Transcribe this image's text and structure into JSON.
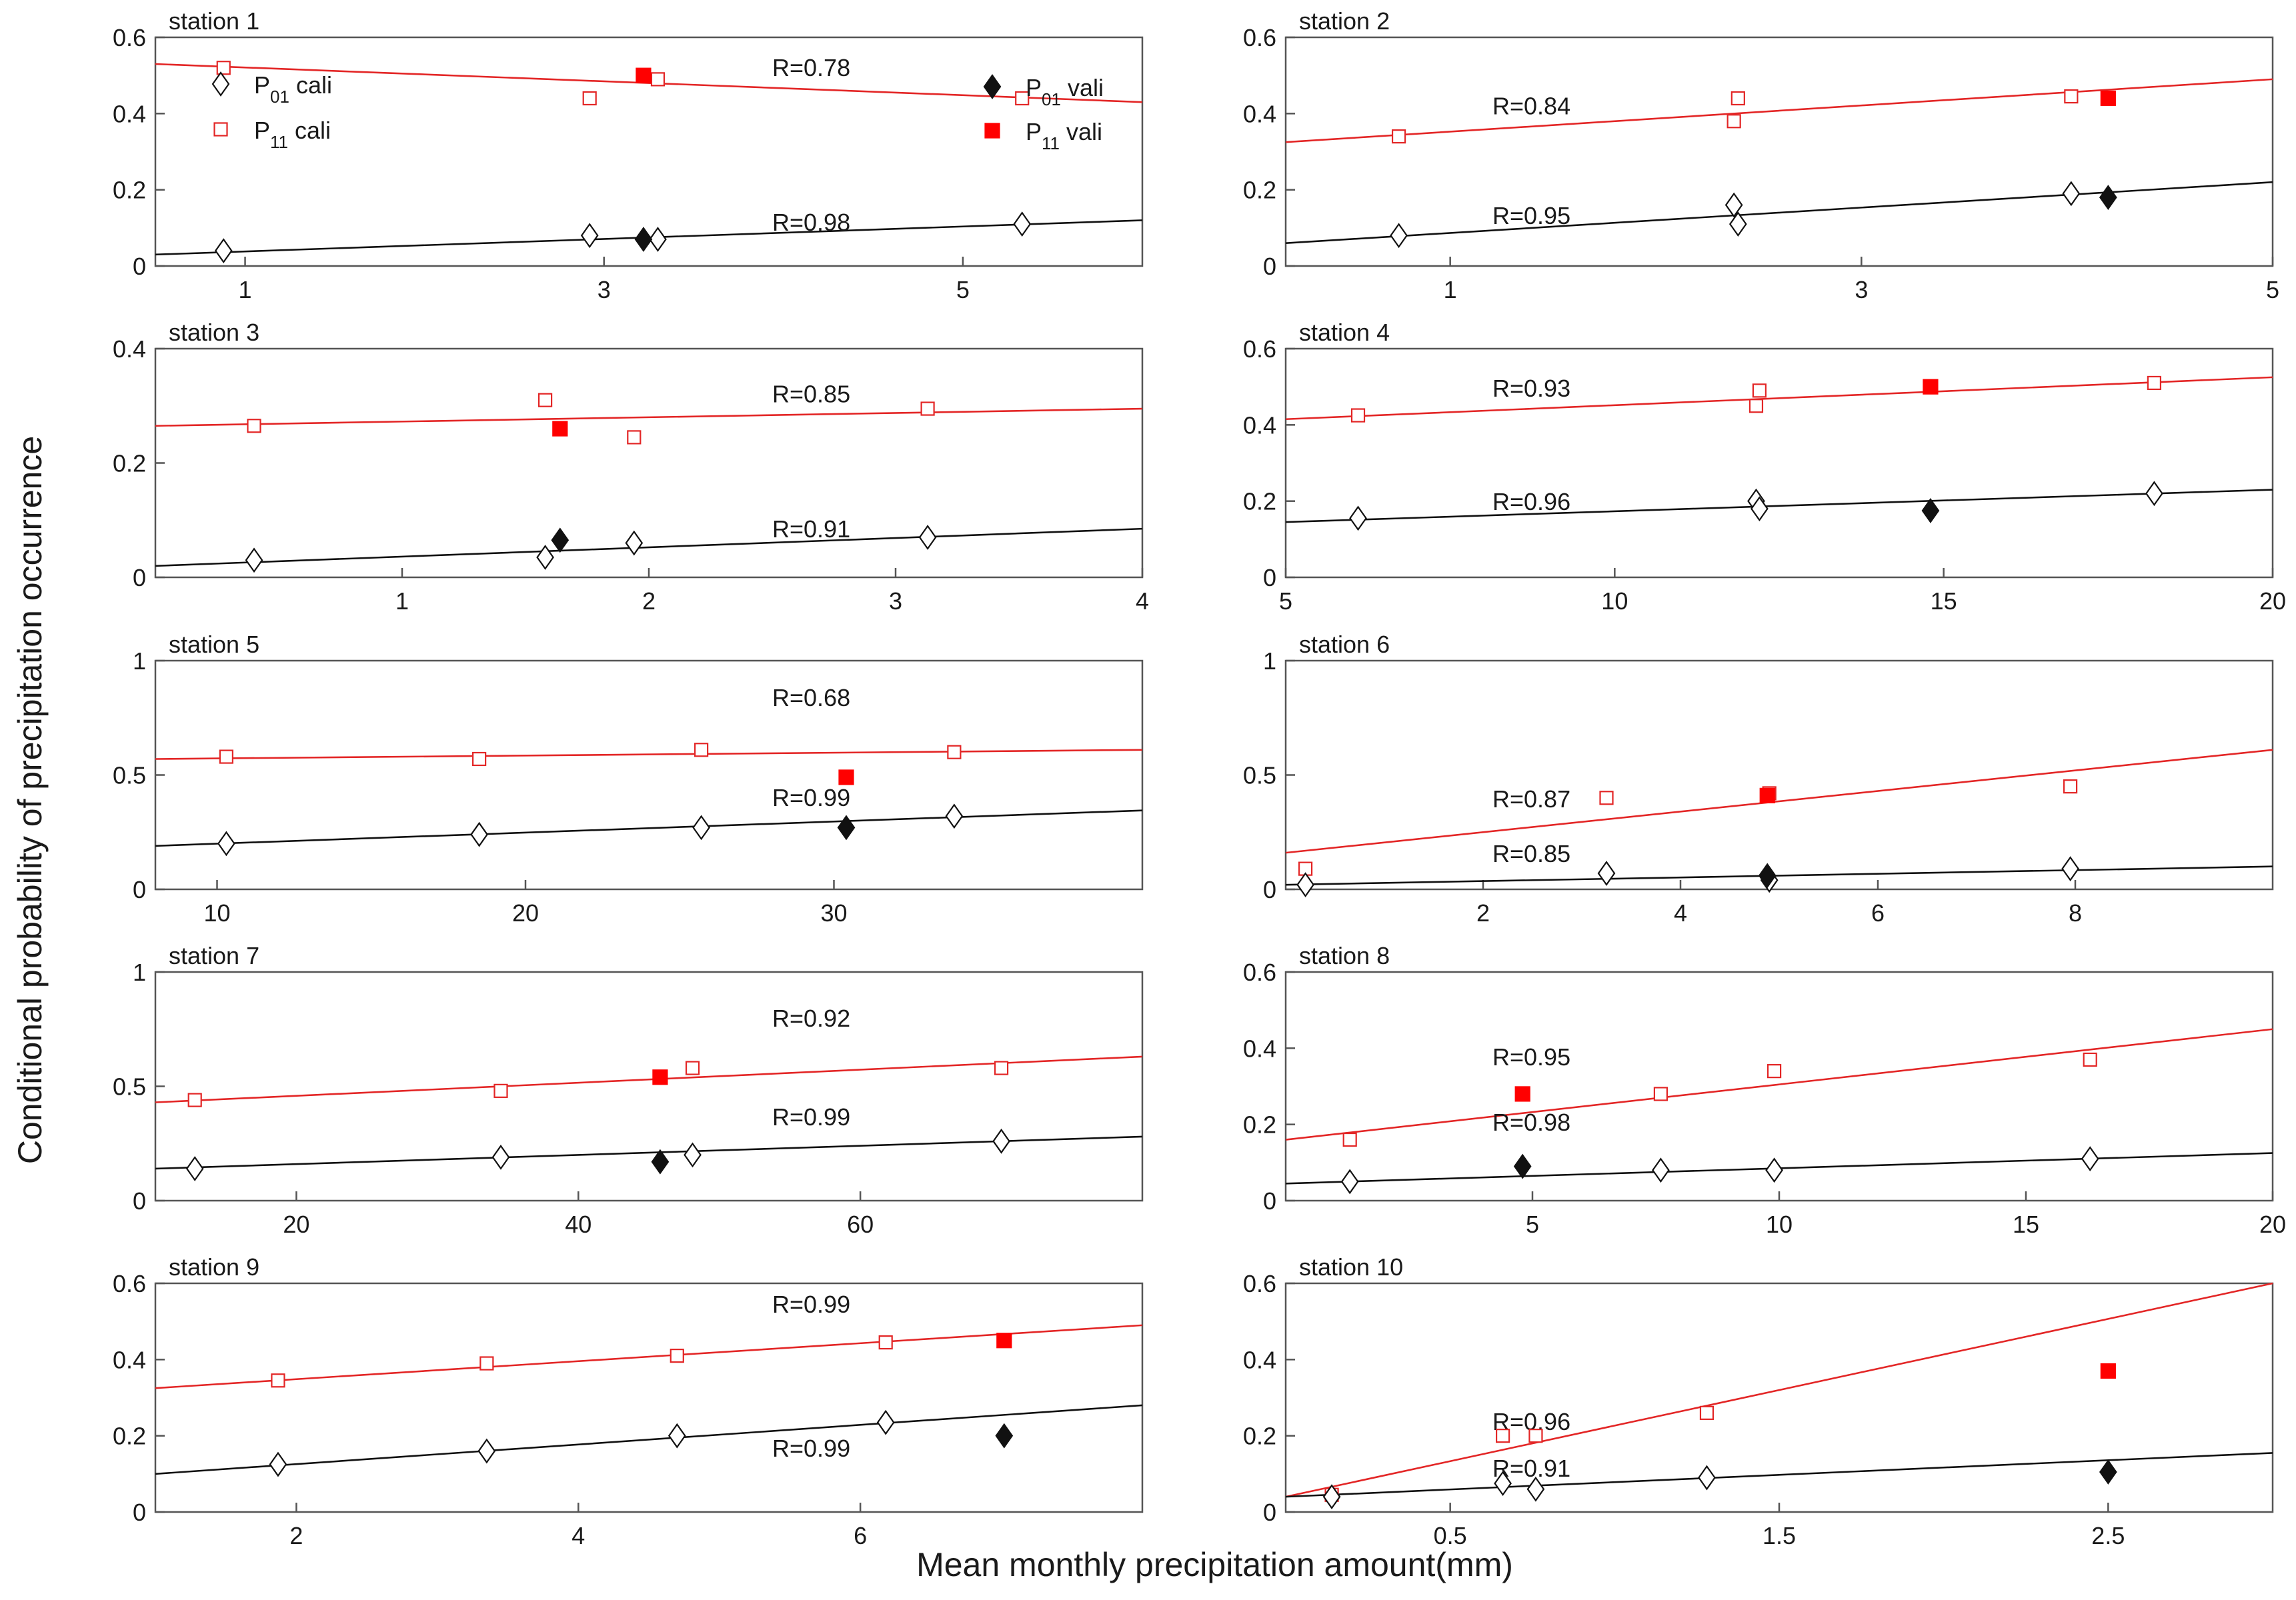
{
  "figure": {
    "ylabel": "Conditional probability of precipitation occurrence",
    "xlabel": "Mean monthly precipitation amount(mm)",
    "legend": {
      "p01_cali": "P01 cali",
      "p11_cali": "P11 cali",
      "p01_vali": "P01 vali",
      "p11_vali": "P11 vali"
    },
    "colors": {
      "p11": "#e32626",
      "p01": "#111111",
      "red_fill": "#ff0000"
    }
  },
  "chart_data": [
    {
      "type": "scatter",
      "title": "station 1",
      "xlim": [
        0.5,
        6
      ],
      "ylim": [
        0,
        0.6
      ],
      "xticks": [
        1,
        3,
        5
      ],
      "yticks": [
        0,
        0.2,
        0.4,
        0.6
      ],
      "r_p11": "R=0.78",
      "r_p01": "R=0.98",
      "p11_line": [
        [
          0.5,
          0.53
        ],
        [
          6,
          0.43
        ]
      ],
      "p01_line": [
        [
          0.5,
          0.03
        ],
        [
          6,
          0.12
        ]
      ],
      "p11_cali": [
        [
          0.88,
          0.52
        ],
        [
          2.92,
          0.44
        ],
        [
          3.3,
          0.49
        ],
        [
          5.33,
          0.44
        ]
      ],
      "p11_vali": [
        [
          3.22,
          0.5
        ]
      ],
      "p01_cali": [
        [
          0.88,
          0.04
        ],
        [
          2.92,
          0.08
        ],
        [
          3.3,
          0.07
        ],
        [
          5.33,
          0.11
        ]
      ],
      "p01_vali": [
        [
          3.22,
          0.07
        ]
      ]
    },
    {
      "type": "scatter",
      "title": "station 2",
      "xlim": [
        0.2,
        5
      ],
      "ylim": [
        0,
        0.6
      ],
      "xticks": [
        1,
        3,
        5
      ],
      "yticks": [
        0,
        0.2,
        0.4,
        0.6
      ],
      "r_p11": "R=0.84",
      "r_p01": "R=0.95",
      "p11_line": [
        [
          0.2,
          0.325
        ],
        [
          5,
          0.49
        ]
      ],
      "p01_line": [
        [
          0.2,
          0.06
        ],
        [
          5,
          0.22
        ]
      ],
      "p11_cali": [
        [
          0.75,
          0.34
        ],
        [
          2.4,
          0.44
        ],
        [
          2.38,
          0.38
        ],
        [
          4.02,
          0.445
        ]
      ],
      "p11_vali": [
        [
          4.2,
          0.44
        ]
      ],
      "p01_cali": [
        [
          0.75,
          0.08
        ],
        [
          2.4,
          0.11
        ],
        [
          2.38,
          0.16
        ],
        [
          4.02,
          0.19
        ]
      ],
      "p01_vali": [
        [
          4.2,
          0.18
        ]
      ]
    },
    {
      "type": "scatter",
      "title": "station 3",
      "xlim": [
        0,
        4
      ],
      "ylim": [
        0,
        0.4
      ],
      "xticks": [
        1,
        2,
        3,
        4
      ],
      "yticks": [
        0,
        0.2,
        0.4
      ],
      "r_p11": "R=0.85",
      "r_p01": "R=0.91",
      "p11_line": [
        [
          0,
          0.265
        ],
        [
          4,
          0.295
        ]
      ],
      "p01_line": [
        [
          0,
          0.02
        ],
        [
          4,
          0.085
        ]
      ],
      "p11_cali": [
        [
          0.4,
          0.265
        ],
        [
          1.58,
          0.31
        ],
        [
          1.94,
          0.245
        ],
        [
          3.13,
          0.295
        ]
      ],
      "p11_vali": [
        [
          1.64,
          0.26
        ]
      ],
      "p01_cali": [
        [
          0.4,
          0.03
        ],
        [
          1.58,
          0.035
        ],
        [
          1.94,
          0.06
        ],
        [
          3.13,
          0.07
        ]
      ],
      "p01_vali": [
        [
          1.64,
          0.065
        ]
      ]
    },
    {
      "type": "scatter",
      "title": "station 4",
      "xlim": [
        5,
        20
      ],
      "ylim": [
        0,
        0.6
      ],
      "xticks": [
        5,
        10,
        15,
        20
      ],
      "yticks": [
        0,
        0.2,
        0.4,
        0.6
      ],
      "r_p11": "R=0.93",
      "r_p01": "R=0.96",
      "p11_line": [
        [
          5,
          0.415
        ],
        [
          20,
          0.525
        ]
      ],
      "p01_line": [
        [
          5,
          0.145
        ],
        [
          20,
          0.23
        ]
      ],
      "p11_cali": [
        [
          6.1,
          0.425
        ],
        [
          12.15,
          0.45
        ],
        [
          12.2,
          0.49
        ],
        [
          18.2,
          0.51
        ]
      ],
      "p11_vali": [
        [
          14.8,
          0.5
        ]
      ],
      "p01_cali": [
        [
          6.1,
          0.155
        ],
        [
          12.15,
          0.2
        ],
        [
          12.2,
          0.18
        ],
        [
          18.2,
          0.22
        ]
      ],
      "p01_vali": [
        [
          14.8,
          0.175
        ]
      ]
    },
    {
      "type": "scatter",
      "title": "station 5",
      "xlim": [
        8,
        40
      ],
      "ylim": [
        0,
        1
      ],
      "xticks": [
        10,
        20,
        30
      ],
      "yticks": [
        0,
        0.5,
        1
      ],
      "r_p11": "R=0.68",
      "r_p01": "R=0.99",
      "p11_line": [
        [
          8,
          0.57
        ],
        [
          40,
          0.61
        ]
      ],
      "p01_line": [
        [
          8,
          0.19
        ],
        [
          40,
          0.345
        ]
      ],
      "p11_cali": [
        [
          10.3,
          0.58
        ],
        [
          18.5,
          0.57
        ],
        [
          25.7,
          0.61
        ],
        [
          33.9,
          0.6
        ]
      ],
      "p11_vali": [
        [
          30.4,
          0.49
        ]
      ],
      "p01_cali": [
        [
          10.3,
          0.2
        ],
        [
          18.5,
          0.24
        ],
        [
          25.7,
          0.27
        ],
        [
          33.9,
          0.32
        ]
      ],
      "p01_vali": [
        [
          30.4,
          0.27
        ]
      ]
    },
    {
      "type": "scatter",
      "title": "station 6",
      "xlim": [
        0,
        10
      ],
      "ylim": [
        0,
        1
      ],
      "xticks": [
        2,
        4,
        6,
        8
      ],
      "yticks": [
        0,
        0.5,
        1
      ],
      "r_p11": "R=0.87",
      "r_p01": "R=0.85",
      "p11_line": [
        [
          0,
          0.16
        ],
        [
          10,
          0.61
        ]
      ],
      "p01_line": [
        [
          0,
          0.02
        ],
        [
          10,
          0.1
        ]
      ],
      "p11_cali": [
        [
          0.2,
          0.09
        ],
        [
          3.25,
          0.4
        ],
        [
          4.9,
          0.42
        ],
        [
          7.95,
          0.45
        ]
      ],
      "p11_vali": [
        [
          4.88,
          0.41
        ]
      ],
      "p01_cali": [
        [
          0.2,
          0.02
        ],
        [
          3.25,
          0.07
        ],
        [
          4.9,
          0.04
        ],
        [
          7.95,
          0.09
        ]
      ],
      "p01_vali": [
        [
          4.88,
          0.06
        ]
      ]
    },
    {
      "type": "scatter",
      "title": "station 7",
      "xlim": [
        10,
        80
      ],
      "ylim": [
        0,
        1
      ],
      "xticks": [
        20,
        40,
        60
      ],
      "yticks": [
        0,
        0.5,
        1
      ],
      "r_p11": "R=0.92",
      "r_p01": "R=0.99",
      "p11_line": [
        [
          10,
          0.43
        ],
        [
          80,
          0.63
        ]
      ],
      "p01_line": [
        [
          10,
          0.14
        ],
        [
          80,
          0.28
        ]
      ],
      "p11_cali": [
        [
          12.8,
          0.44
        ],
        [
          34.5,
          0.48
        ],
        [
          48.1,
          0.58
        ],
        [
          70,
          0.58
        ]
      ],
      "p11_vali": [
        [
          45.8,
          0.54
        ]
      ],
      "p01_cali": [
        [
          12.8,
          0.14
        ],
        [
          34.5,
          0.19
        ],
        [
          48.1,
          0.2
        ],
        [
          70,
          0.26
        ]
      ],
      "p01_vali": [
        [
          45.8,
          0.17
        ]
      ]
    },
    {
      "type": "scatter",
      "title": "station 8",
      "xlim": [
        0,
        20
      ],
      "ylim": [
        0,
        0.6
      ],
      "xticks": [
        5,
        10,
        15,
        20
      ],
      "yticks": [
        0,
        0.2,
        0.4,
        0.6
      ],
      "r_p11": "R=0.95",
      "r_p01": "R=0.98",
      "p11_line": [
        [
          0,
          0.16
        ],
        [
          20,
          0.45
        ]
      ],
      "p01_line": [
        [
          0,
          0.045
        ],
        [
          20,
          0.125
        ]
      ],
      "p11_cali": [
        [
          1.3,
          0.16
        ],
        [
          7.6,
          0.28
        ],
        [
          9.9,
          0.34
        ],
        [
          16.3,
          0.37
        ]
      ],
      "p11_vali": [
        [
          4.8,
          0.28
        ]
      ],
      "p01_cali": [
        [
          1.3,
          0.05
        ],
        [
          7.6,
          0.08
        ],
        [
          9.9,
          0.08
        ],
        [
          16.3,
          0.11
        ]
      ],
      "p01_vali": [
        [
          4.8,
          0.09
        ]
      ]
    },
    {
      "type": "scatter",
      "title": "station 9",
      "xlim": [
        1,
        8
      ],
      "ylim": [
        0,
        0.6
      ],
      "xticks": [
        2,
        4,
        6
      ],
      "yticks": [
        0,
        0.2,
        0.4,
        0.6
      ],
      "r_p11": "R=0.99",
      "r_p01": "R=0.99",
      "p11_line": [
        [
          1,
          0.325
        ],
        [
          8,
          0.49
        ]
      ],
      "p01_line": [
        [
          1,
          0.1
        ],
        [
          8,
          0.28
        ]
      ],
      "p11_cali": [
        [
          1.87,
          0.345
        ],
        [
          3.35,
          0.39
        ],
        [
          4.7,
          0.41
        ],
        [
          6.18,
          0.445
        ]
      ],
      "p11_vali": [
        [
          7.02,
          0.45
        ]
      ],
      "p01_cali": [
        [
          1.87,
          0.125
        ],
        [
          3.35,
          0.16
        ],
        [
          4.7,
          0.2
        ],
        [
          6.18,
          0.235
        ]
      ],
      "p01_vali": [
        [
          7.02,
          0.2
        ]
      ]
    },
    {
      "type": "scatter",
      "title": "station 10",
      "xlim": [
        0,
        3
      ],
      "ylim": [
        0,
        0.6
      ],
      "xticks": [
        0.5,
        1.5,
        2.5
      ],
      "yticks": [
        0,
        0.2,
        0.4,
        0.6
      ],
      "r_p11": "R=0.96",
      "r_p01": "R=0.91",
      "p11_line": [
        [
          0,
          0.04
        ],
        [
          3,
          0.6
        ]
      ],
      "p01_line": [
        [
          0,
          0.04
        ],
        [
          3,
          0.155
        ]
      ],
      "p11_cali": [
        [
          0.14,
          0.045
        ],
        [
          0.66,
          0.2
        ],
        [
          0.76,
          0.2
        ],
        [
          1.28,
          0.26
        ]
      ],
      "p11_vali": [
        [
          2.5,
          0.37
        ]
      ],
      "p01_cali": [
        [
          0.14,
          0.04
        ],
        [
          0.66,
          0.075
        ],
        [
          0.76,
          0.06
        ],
        [
          1.28,
          0.09
        ]
      ],
      "p01_vali": [
        [
          2.5,
          0.105
        ]
      ]
    }
  ]
}
